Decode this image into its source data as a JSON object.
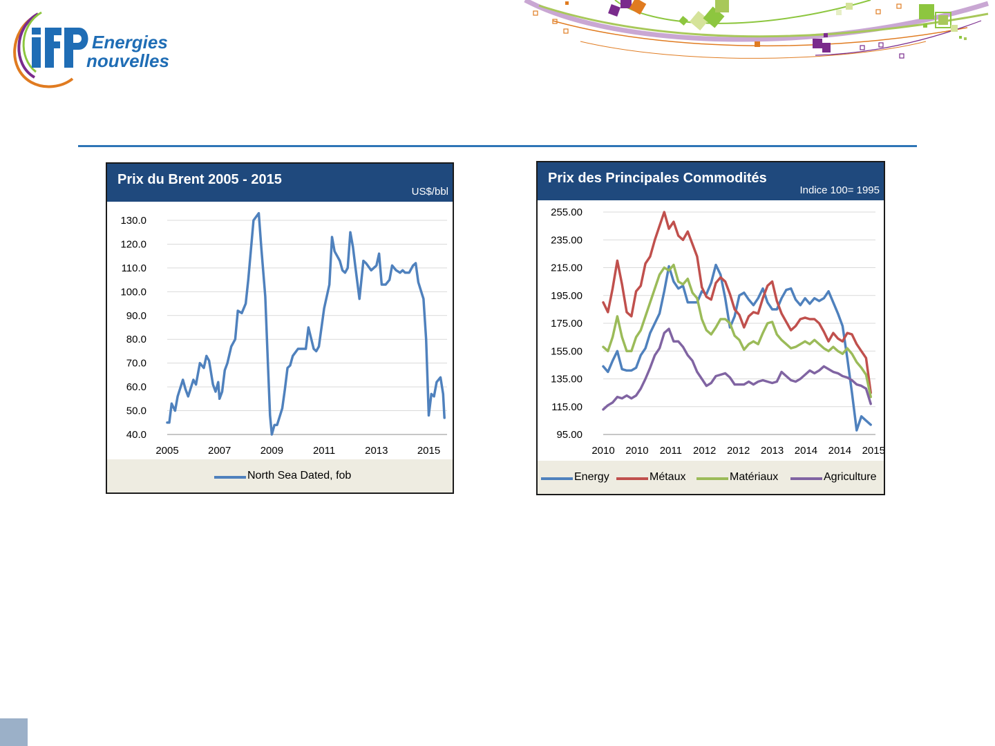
{
  "brand": {
    "line1": "Energies",
    "line2": "nouvelles"
  },
  "colors": {
    "header": "#1f497d",
    "legend_bg": "#eeece1",
    "rule": "#2e75b6",
    "energy": "#4f81bd",
    "metaux": "#c0504d",
    "materiaux": "#9bbb59",
    "agriculture": "#8064a2"
  },
  "chart_data": [
    {
      "type": "line",
      "title": "Prix du Brent 2005 - 2015",
      "unit": "US$/bbl",
      "xlabel": "",
      "ylabel": "",
      "ylim": [
        40,
        135
      ],
      "xlim": [
        2005,
        2015.7
      ],
      "yticks": [
        "40.0",
        "50.0",
        "60.0",
        "70.0",
        "80.0",
        "90.0",
        "100.0",
        "110.0",
        "120.0",
        "130.0"
      ],
      "xticks": [
        "2005",
        "2007",
        "2009",
        "2011",
        "2013",
        "2015"
      ],
      "legend": "bottom",
      "series": [
        {
          "name": "North Sea Dated, fob",
          "color": "#4f81bd",
          "x": [
            2005.0,
            2005.08,
            2005.17,
            2005.3,
            2005.4,
            2005.6,
            2005.7,
            2005.8,
            2006.0,
            2006.1,
            2006.25,
            2006.4,
            2006.5,
            2006.6,
            2006.75,
            2006.85,
            2006.95,
            2007.0,
            2007.1,
            2007.2,
            2007.3,
            2007.45,
            2007.6,
            2007.7,
            2007.85,
            2008.0,
            2008.1,
            2008.3,
            2008.5,
            2008.6,
            2008.75,
            2008.85,
            2008.93,
            2009.0,
            2009.1,
            2009.2,
            2009.4,
            2009.5,
            2009.6,
            2009.7,
            2009.8,
            2010.0,
            2010.1,
            2010.3,
            2010.4,
            2010.6,
            2010.7,
            2010.8,
            2011.0,
            2011.2,
            2011.3,
            2011.4,
            2011.5,
            2011.6,
            2011.7,
            2011.8,
            2011.9,
            2012.0,
            2012.1,
            2012.2,
            2012.35,
            2012.5,
            2012.6,
            2012.8,
            2013.0,
            2013.1,
            2013.2,
            2013.35,
            2013.5,
            2013.6,
            2013.75,
            2013.9,
            2014.0,
            2014.1,
            2014.25,
            2014.4,
            2014.5,
            2014.6,
            2014.8,
            2014.9,
            2015.0,
            2015.1,
            2015.2,
            2015.3,
            2015.45,
            2015.55,
            2015.6
          ],
          "y": [
            45,
            45,
            53,
            50,
            56,
            63,
            59,
            56,
            63,
            61,
            70,
            68,
            73,
            71,
            61,
            58,
            62,
            55,
            58,
            67,
            70,
            77,
            80,
            92,
            91,
            95,
            105,
            130,
            133,
            118,
            98,
            70,
            48,
            40,
            44,
            44,
            51,
            59,
            68,
            69,
            73,
            76,
            76,
            76,
            85,
            76,
            75,
            77,
            93,
            103,
            123,
            117,
            115,
            113,
            109,
            108,
            110,
            125,
            119,
            110,
            97,
            113,
            112,
            109,
            111,
            116,
            103,
            103,
            105,
            111,
            109,
            108,
            109,
            108,
            108,
            111,
            112,
            104,
            97,
            80,
            48,
            57,
            56,
            62,
            64,
            57,
            47
          ]
        }
      ]
    },
    {
      "type": "line",
      "title": "Prix des Principales Commodités",
      "unit": "Indice 100= 1995",
      "xlabel": "",
      "ylabel": "",
      "ylim": [
        95,
        255
      ],
      "xlim": [
        2010,
        2015.8
      ],
      "yticks": [
        "95.00",
        "115.00",
        "135.00",
        "155.00",
        "175.00",
        "195.00",
        "215.00",
        "235.00",
        "255.00"
      ],
      "xticks": [
        "2010",
        "2010",
        "2011",
        "2012",
        "2012",
        "2013",
        "2014",
        "2014",
        "2015"
      ],
      "legend": "bottom",
      "series": [
        {
          "name": "Energy",
          "color": "#4f81bd",
          "x": [
            2010.0,
            2010.1,
            2010.2,
            2010.3,
            2010.4,
            2010.5,
            2010.6,
            2010.7,
            2010.8,
            2010.9,
            2011.0,
            2011.1,
            2011.2,
            2011.3,
            2011.4,
            2011.5,
            2011.6,
            2011.7,
            2011.8,
            2011.9,
            2012.0,
            2012.1,
            2012.2,
            2012.3,
            2012.4,
            2012.5,
            2012.6,
            2012.7,
            2012.8,
            2012.9,
            2013.0,
            2013.1,
            2013.2,
            2013.3,
            2013.4,
            2013.5,
            2013.6,
            2013.7,
            2013.8,
            2013.9,
            2014.0,
            2014.1,
            2014.2,
            2014.3,
            2014.4,
            2014.5,
            2014.6,
            2014.7,
            2014.8,
            2014.9,
            2015.0,
            2015.1,
            2015.2,
            2015.3,
            2015.4,
            2015.5,
            2015.6,
            2015.7
          ],
          "y": [
            144,
            140,
            148,
            155,
            142,
            141,
            141,
            143,
            152,
            157,
            168,
            175,
            182,
            198,
            216,
            205,
            200,
            202,
            190,
            190,
            190,
            198,
            196,
            204,
            217,
            210,
            193,
            172,
            180,
            195,
            197,
            192,
            188,
            193,
            200,
            190,
            185,
            185,
            193,
            199,
            200,
            192,
            188,
            193,
            189,
            193,
            191,
            193,
            198,
            190,
            182,
            173,
            150,
            125,
            98,
            108,
            105,
            102
          ]
        },
        {
          "name": "Métaux",
          "color": "#c0504d",
          "x": [
            2010.0,
            2010.1,
            2010.2,
            2010.3,
            2010.4,
            2010.5,
            2010.6,
            2010.7,
            2010.8,
            2010.9,
            2011.0,
            2011.1,
            2011.2,
            2011.3,
            2011.4,
            2011.5,
            2011.6,
            2011.7,
            2011.8,
            2011.9,
            2012.0,
            2012.1,
            2012.2,
            2012.3,
            2012.4,
            2012.5,
            2012.6,
            2012.7,
            2012.8,
            2012.9,
            2013.0,
            2013.1,
            2013.2,
            2013.3,
            2013.4,
            2013.5,
            2013.6,
            2013.7,
            2013.8,
            2013.9,
            2014.0,
            2014.1,
            2014.2,
            2014.3,
            2014.4,
            2014.5,
            2014.6,
            2014.7,
            2014.8,
            2014.9,
            2015.0,
            2015.1,
            2015.2,
            2015.3,
            2015.4,
            2015.5,
            2015.6,
            2015.7
          ],
          "y": [
            190,
            183,
            200,
            220,
            203,
            183,
            180,
            198,
            202,
            218,
            223,
            235,
            245,
            255,
            243,
            248,
            238,
            235,
            241,
            232,
            223,
            201,
            194,
            192,
            204,
            208,
            205,
            196,
            185,
            181,
            172,
            180,
            183,
            182,
            193,
            202,
            205,
            191,
            182,
            176,
            170,
            173,
            178,
            179,
            178,
            178,
            175,
            169,
            162,
            168,
            164,
            162,
            168,
            167,
            160,
            155,
            150,
            125
          ]
        },
        {
          "name": "Matériaux",
          "color": "#9bbb59",
          "x": [
            2010.0,
            2010.1,
            2010.2,
            2010.3,
            2010.4,
            2010.5,
            2010.6,
            2010.7,
            2010.8,
            2010.9,
            2011.0,
            2011.1,
            2011.2,
            2011.3,
            2011.4,
            2011.5,
            2011.6,
            2011.7,
            2011.8,
            2011.9,
            2012.0,
            2012.1,
            2012.2,
            2012.3,
            2012.4,
            2012.5,
            2012.6,
            2012.7,
            2012.8,
            2012.9,
            2013.0,
            2013.1,
            2013.2,
            2013.3,
            2013.4,
            2013.5,
            2013.6,
            2013.7,
            2013.8,
            2013.9,
            2014.0,
            2014.1,
            2014.2,
            2014.3,
            2014.4,
            2014.5,
            2014.6,
            2014.7,
            2014.8,
            2014.9,
            2015.0,
            2015.1,
            2015.2,
            2015.3,
            2015.4,
            2015.5,
            2015.6,
            2015.7
          ],
          "y": [
            158,
            155,
            165,
            180,
            165,
            155,
            155,
            165,
            170,
            180,
            190,
            200,
            210,
            215,
            213,
            217,
            205,
            203,
            207,
            197,
            193,
            178,
            170,
            167,
            172,
            178,
            178,
            175,
            166,
            163,
            156,
            160,
            162,
            160,
            168,
            175,
            176,
            167,
            163,
            160,
            157,
            158,
            160,
            162,
            160,
            163,
            160,
            157,
            155,
            158,
            155,
            153,
            157,
            153,
            147,
            143,
            138,
            122
          ]
        },
        {
          "name": "Agriculture",
          "color": "#8064a2",
          "x": [
            2010.0,
            2010.1,
            2010.2,
            2010.3,
            2010.4,
            2010.5,
            2010.6,
            2010.7,
            2010.8,
            2010.9,
            2011.0,
            2011.1,
            2011.2,
            2011.3,
            2011.4,
            2011.5,
            2011.6,
            2011.7,
            2011.8,
            2011.9,
            2012.0,
            2012.1,
            2012.2,
            2012.3,
            2012.4,
            2012.5,
            2012.6,
            2012.7,
            2012.8,
            2012.9,
            2013.0,
            2013.1,
            2013.2,
            2013.3,
            2013.4,
            2013.5,
            2013.6,
            2013.7,
            2013.8,
            2013.9,
            2014.0,
            2014.1,
            2014.2,
            2014.3,
            2014.4,
            2014.5,
            2014.6,
            2014.7,
            2014.8,
            2014.9,
            2015.0,
            2015.1,
            2015.2,
            2015.3,
            2015.4,
            2015.5,
            2015.6,
            2015.7
          ],
          "y": [
            113,
            116,
            118,
            122,
            121,
            123,
            121,
            123,
            128,
            135,
            143,
            152,
            157,
            168,
            171,
            162,
            162,
            158,
            152,
            148,
            140,
            135,
            130,
            132,
            137,
            138,
            139,
            136,
            131,
            131,
            131,
            133,
            131,
            133,
            134,
            133,
            132,
            133,
            140,
            137,
            134,
            133,
            135,
            138,
            141,
            139,
            141,
            144,
            142,
            140,
            139,
            137,
            136,
            134,
            131,
            130,
            128,
            117
          ]
        }
      ]
    }
  ]
}
